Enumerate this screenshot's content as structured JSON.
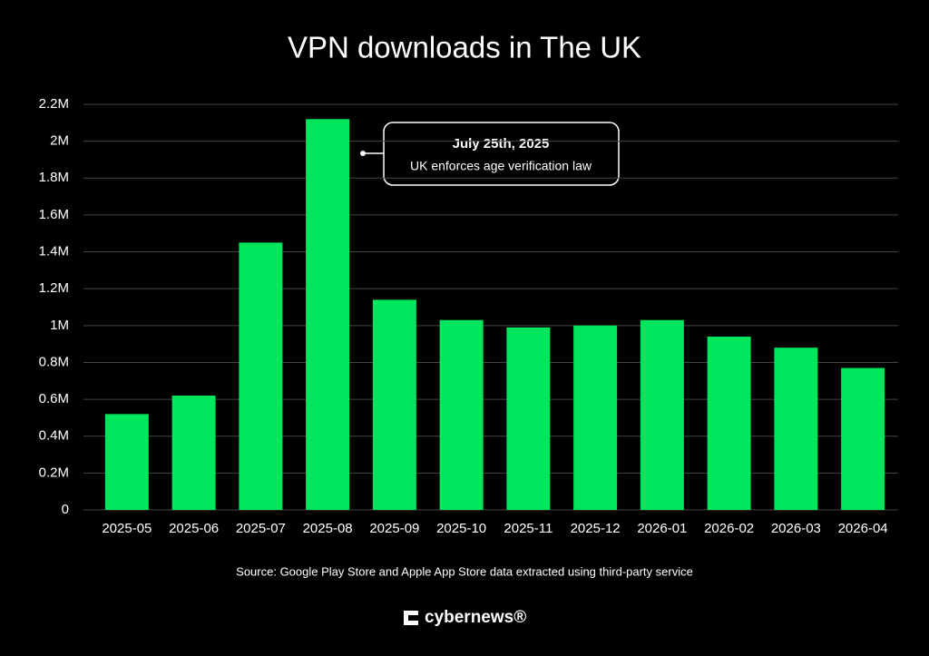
{
  "chart_data": {
    "type": "bar",
    "title": "VPN downloads in The UK",
    "categories": [
      "2025-05",
      "2025-06",
      "2025-07",
      "2025-08",
      "2025-09",
      "2025-10",
      "2025-11",
      "2025-12",
      "2026-01",
      "2026-02",
      "2026-03",
      "2026-04"
    ],
    "values": [
      520000,
      620000,
      1450000,
      2120000,
      1140000,
      1030000,
      990000,
      1000000,
      1030000,
      940000,
      880000,
      770000
    ],
    "color": "#00e65c",
    "ylim": [
      0,
      2200000
    ],
    "yticks": [
      0,
      {
        "value": 200000,
        "label": "0.2M"
      },
      {
        "value": 400000,
        "label": "0.4M"
      },
      {
        "value": 600000,
        "label": "0.6M"
      },
      {
        "value": 800000,
        "label": "0.8M"
      },
      {
        "value": 1000000,
        "label": "1M"
      },
      {
        "value": 1200000,
        "label": "1.2M"
      },
      {
        "value": 1400000,
        "label": "1.4M"
      },
      {
        "value": 1600000,
        "label": "1.6M"
      },
      {
        "value": 1800000,
        "label": "1.8M"
      },
      {
        "value": 2000000,
        "label": "2M"
      },
      {
        "value": 2200000,
        "label": "2.2M"
      }
    ],
    "grid": true,
    "annotation": {
      "title": "July 25th, 2025",
      "text": "UK enforces age verification law"
    },
    "source": "Source: Google Play Store and Apple App Store data extracted using third-party service",
    "brand": "cybernews®"
  }
}
